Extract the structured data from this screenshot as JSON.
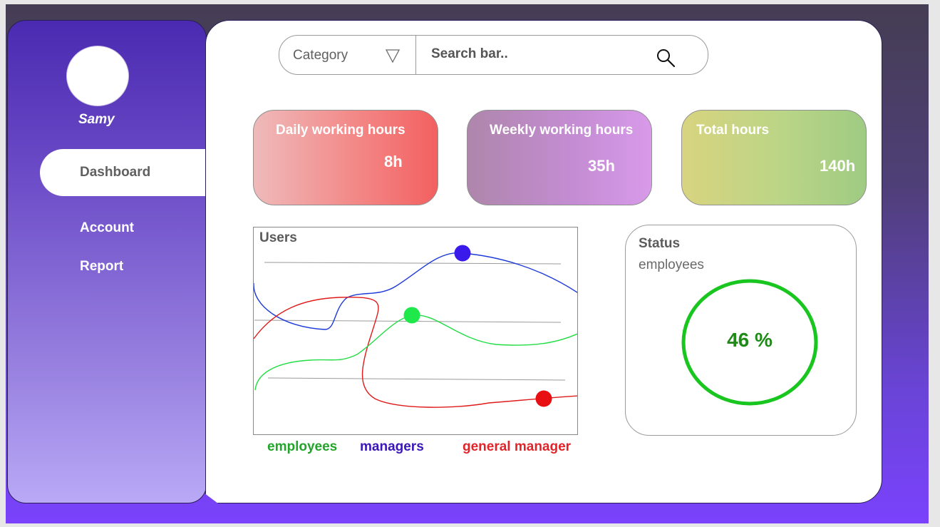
{
  "user": {
    "name": "Samy"
  },
  "sidebar": {
    "items": [
      {
        "label": "Dashboard",
        "active": true
      },
      {
        "label": "Account"
      },
      {
        "label": "Report"
      }
    ]
  },
  "search": {
    "category_label": "Category",
    "placeholder": "Search bar.."
  },
  "stats": [
    {
      "label": "Daily working hours",
      "value": "8h"
    },
    {
      "label": "Weekly working hours",
      "value": "35h"
    },
    {
      "label": "Total hours",
      "value": "140h"
    }
  ],
  "chart_data": {
    "type": "line",
    "title": "Users",
    "series": [
      {
        "name": "employees",
        "color": "#22dd44"
      },
      {
        "name": "managers",
        "color": "#2a28dd"
      },
      {
        "name": "general manager",
        "color": "#e01a1a"
      }
    ]
  },
  "legend_colors": {
    "employees": "#23a42a",
    "managers": "#3b17b8",
    "general manager": "#e0242a"
  },
  "status": {
    "title": "Status",
    "subtitle": "employees",
    "value_text": "46 %",
    "percent": 46
  }
}
